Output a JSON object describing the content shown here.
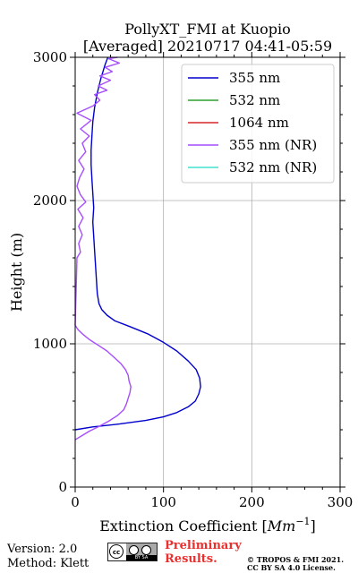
{
  "chart_data": {
    "type": "line",
    "title_line1": "PollyXT_FMI at Kuopio",
    "title_line2": "[Averaged] 20210717 04:41-05:59",
    "xlabel_text": "Extinction Coefficient [",
    "xlabel_unit": "Mm",
    "xlabel_exp": "−1",
    "xlabel_close": "]",
    "ylabel": "Height (m)",
    "xlim": [
      0,
      300
    ],
    "ylim": [
      0,
      3000
    ],
    "x_ticks": [
      0,
      100,
      200,
      300
    ],
    "x_tick_labels": [
      "0",
      "100",
      "200",
      "300"
    ],
    "y_ticks": [
      0,
      1000,
      2000,
      3000
    ],
    "y_tick_labels": [
      "0",
      "1000",
      "2000",
      "3000"
    ],
    "grid": true,
    "legend_position": "top-right",
    "series": [
      {
        "name": "355 nm",
        "color": "#0000cc",
        "points": [
          [
            0,
            400
          ],
          [
            20,
            420
          ],
          [
            50,
            440
          ],
          [
            80,
            465
          ],
          [
            100,
            490
          ],
          [
            115,
            520
          ],
          [
            128,
            560
          ],
          [
            136,
            600
          ],
          [
            140,
            650
          ],
          [
            142,
            700
          ],
          [
            141,
            760
          ],
          [
            137,
            820
          ],
          [
            128,
            880
          ],
          [
            115,
            950
          ],
          [
            100,
            1010
          ],
          [
            82,
            1070
          ],
          [
            62,
            1120
          ],
          [
            45,
            1160
          ],
          [
            36,
            1200
          ],
          [
            30,
            1240
          ],
          [
            27,
            1280
          ],
          [
            25,
            1350
          ],
          [
            24,
            1450
          ],
          [
            23,
            1550
          ],
          [
            22,
            1650
          ],
          [
            21,
            1750
          ],
          [
            20,
            1850
          ],
          [
            21,
            1950
          ],
          [
            20,
            2050
          ],
          [
            19,
            2150
          ],
          [
            18,
            2250
          ],
          [
            18,
            2350
          ],
          [
            19,
            2450
          ],
          [
            20,
            2550
          ],
          [
            22,
            2650
          ],
          [
            25,
            2750
          ],
          [
            29,
            2850
          ],
          [
            34,
            2950
          ],
          [
            37,
            3000
          ]
        ]
      },
      {
        "name": "532 nm",
        "color": "#2ca02c",
        "points": []
      },
      {
        "name": "1064 nm",
        "color": "#d62728",
        "points": []
      },
      {
        "name": "355 nm (NR)",
        "color": "#a64dff",
        "points": [
          [
            0,
            330
          ],
          [
            8,
            360
          ],
          [
            16,
            390
          ],
          [
            26,
            420
          ],
          [
            38,
            460
          ],
          [
            48,
            500
          ],
          [
            55,
            540
          ],
          [
            58,
            580
          ],
          [
            60,
            620
          ],
          [
            62,
            660
          ],
          [
            63,
            700
          ],
          [
            61,
            740
          ],
          [
            60,
            780
          ],
          [
            57,
            820
          ],
          [
            52,
            860
          ],
          [
            45,
            900
          ],
          [
            36,
            950
          ],
          [
            26,
            990
          ],
          [
            16,
            1030
          ],
          [
            8,
            1070
          ],
          [
            3,
            1100
          ],
          [
            0,
            1130
          ],
          [
            2,
            1600
          ],
          [
            6,
            1640
          ],
          [
            4,
            1700
          ],
          [
            8,
            1760
          ],
          [
            4,
            1820
          ],
          [
            9,
            1880
          ],
          [
            3,
            1940
          ],
          [
            12,
            1990
          ],
          [
            6,
            2040
          ],
          [
            2,
            2100
          ],
          [
            5,
            2160
          ],
          [
            10,
            2220
          ],
          [
            4,
            2280
          ],
          [
            12,
            2340
          ],
          [
            8,
            2400
          ],
          [
            16,
            2450
          ],
          [
            6,
            2500
          ],
          [
            18,
            2560
          ],
          [
            2,
            2610
          ],
          [
            20,
            2660
          ],
          [
            28,
            2700
          ],
          [
            22,
            2740
          ],
          [
            36,
            2770
          ],
          [
            26,
            2800
          ],
          [
            40,
            2840
          ],
          [
            28,
            2870
          ],
          [
            42,
            2900
          ],
          [
            34,
            2930
          ],
          [
            50,
            2960
          ],
          [
            38,
            2990
          ],
          [
            48,
            3000
          ]
        ]
      },
      {
        "name": "532 nm (NR)",
        "color": "#40e0d0",
        "points": []
      }
    ]
  },
  "footer": {
    "version": "Version: 2.0",
    "method": "Method: Klett",
    "preliminary_line1": "Preliminary",
    "preliminary_line2": "Results.",
    "copyright_line1": "© TROPOS & FMI 2021.",
    "copyright_line2": "CC BY SA 4.0 License.",
    "badge_text": "BY SA"
  },
  "colors": {
    "preliminary": "#e8302f",
    "grid": "#b0b0b0"
  }
}
